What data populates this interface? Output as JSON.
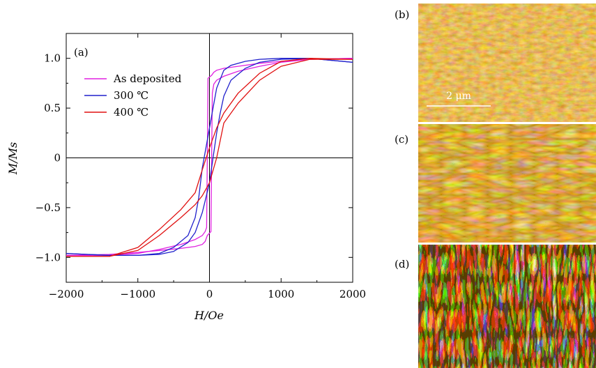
{
  "chart_data": {
    "type": "line",
    "panel_label": "(a)",
    "xlabel": "H/Oe",
    "ylabel": "M/Ms",
    "xlim": [
      -2000,
      2000
    ],
    "ylim": [
      -1.25,
      1.25
    ],
    "x_ticks": [
      -2000,
      -1000,
      0,
      1000,
      2000
    ],
    "x_tick_labels": [
      "−2000",
      "−1000",
      "0",
      "1000",
      "2000"
    ],
    "y_ticks": [
      -1.0,
      -0.5,
      0,
      0.5,
      1.0
    ],
    "y_tick_labels": [
      "−1.0",
      "−0.5",
      "0",
      "0.5",
      "1.0"
    ],
    "legend_position": "upper-left",
    "series": [
      {
        "name": "As deposited",
        "color": "#e020e0",
        "branches": [
          {
            "x": [
              -2000,
              -1400,
              -1000,
              -700,
              -400,
              -200,
              -100,
              -60,
              -30,
              20,
              30,
              40,
              60,
              100,
              200,
              400,
              700,
              1000,
              1400,
              2000
            ],
            "y": [
              -0.98,
              -0.97,
              -0.95,
              -0.93,
              -0.91,
              -0.89,
              -0.87,
              -0.84,
              -0.78,
              -0.74,
              0.0,
              0.65,
              0.74,
              0.78,
              0.82,
              0.87,
              0.92,
              0.96,
              0.99,
              1.0
            ]
          },
          {
            "x": [
              2000,
              1400,
              1000,
              700,
              400,
              200,
              100,
              60,
              30,
              -20,
              -30,
              -40,
              -60,
              -100,
              -200,
              -400,
              -700,
              -1000,
              -1400,
              -2000
            ],
            "y": [
              1.0,
              0.99,
              0.97,
              0.95,
              0.92,
              0.9,
              0.88,
              0.86,
              0.83,
              0.8,
              0.0,
              -0.7,
              -0.74,
              -0.78,
              -0.82,
              -0.87,
              -0.92,
              -0.96,
              -0.98,
              -0.98
            ]
          }
        ]
      },
      {
        "name": "300 ℃",
        "color": "#2020cc",
        "branches": [
          {
            "x": [
              -2000,
              -1400,
              -1000,
              -700,
              -500,
              -300,
              -200,
              -100,
              -50,
              0,
              50,
              100,
              150,
              200,
              300,
              500,
              700,
              1000,
              1400,
              2000
            ],
            "y": [
              -0.96,
              -0.98,
              -0.98,
              -0.97,
              -0.94,
              -0.85,
              -0.75,
              -0.55,
              -0.4,
              -0.25,
              0.0,
              0.25,
              0.45,
              0.62,
              0.78,
              0.9,
              0.96,
              0.99,
              1.0,
              0.96
            ]
          },
          {
            "x": [
              2000,
              1400,
              1000,
              700,
              500,
              300,
              200,
              100,
              50,
              0,
              -50,
              -100,
              -150,
              -200,
              -300,
              -500,
              -700,
              -1000,
              -1400,
              -2000
            ],
            "y": [
              0.96,
              1.0,
              1.0,
              0.99,
              0.97,
              0.93,
              0.88,
              0.7,
              0.5,
              0.3,
              0.1,
              -0.1,
              -0.4,
              -0.6,
              -0.78,
              -0.9,
              -0.96,
              -0.98,
              -0.98,
              -0.96
            ]
          }
        ]
      },
      {
        "name": "400 ℃",
        "color": "#e01010",
        "branches": [
          {
            "x": [
              -2000,
              -1400,
              -1000,
              -700,
              -400,
              -200,
              -100,
              0,
              100,
              200,
              400,
              700,
              1000,
              1400,
              2000
            ],
            "y": [
              -0.99,
              -0.99,
              -0.93,
              -0.78,
              -0.6,
              -0.47,
              -0.38,
              -0.25,
              0.0,
              0.35,
              0.55,
              0.78,
              0.92,
              0.99,
              0.99
            ]
          },
          {
            "x": [
              2000,
              1400,
              1000,
              700,
              400,
              200,
              100,
              0,
              -100,
              -200,
              -400,
              -700,
              -1000,
              -1400,
              -2000
            ],
            "y": [
              0.99,
              1.0,
              0.97,
              0.85,
              0.65,
              0.45,
              0.3,
              0.1,
              -0.12,
              -0.35,
              -0.52,
              -0.72,
              -0.9,
              -0.99,
              -0.99
            ]
          }
        ]
      }
    ]
  },
  "afm_panels": [
    {
      "label": "(b)",
      "scale_bar": "2 μm"
    },
    {
      "label": "(c)"
    },
    {
      "label": "(d)"
    }
  ]
}
